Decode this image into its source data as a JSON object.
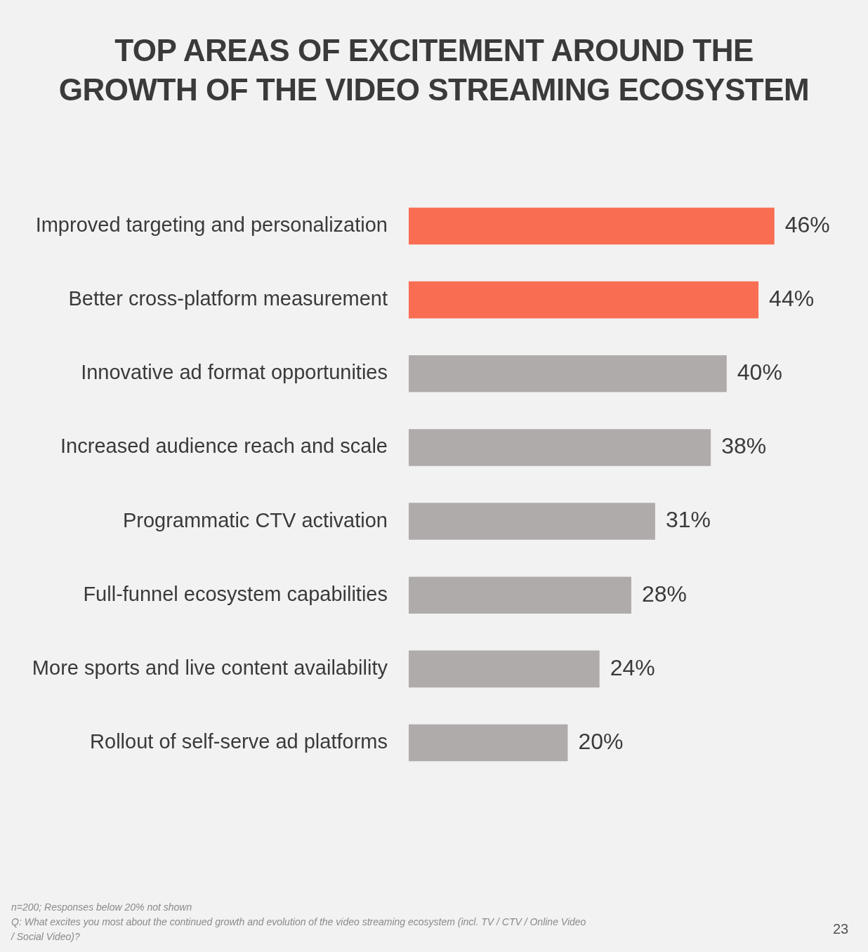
{
  "chart_data": {
    "type": "bar",
    "orientation": "horizontal",
    "title": "TOP AREAS OF EXCITEMENT AROUND THE GROWTH OF THE VIDEO STREAMING ECOSYSTEM",
    "categories": [
      "Improved targeting and personalization",
      "Better cross-platform measurement",
      "Innovative ad format opportunities",
      "Increased audience reach and scale",
      "Programmatic CTV activation",
      "Full-funnel ecosystem capabilities",
      "More sports and live content availability",
      "Rollout of self-serve ad platforms"
    ],
    "values": [
      46,
      44,
      40,
      38,
      31,
      28,
      24,
      20
    ],
    "colors": [
      "#f96e52",
      "#f96e52",
      "#afabaa",
      "#afabaa",
      "#afabaa",
      "#afabaa",
      "#afabaa",
      "#afabaa"
    ],
    "value_labels": [
      "46%",
      "44%",
      "40%",
      "38%",
      "31%",
      "28%",
      "24%",
      "20%"
    ],
    "tick_labels": "y",
    "grid": false,
    "legend": false,
    "annotations": [
      "n=200; Responses below 20% not shown",
      "Q: What excites you most about the continued growth and evolution of the video streaming ecosystem (incl. TV / CTV / Online Video / Social Video)?",
      "23"
    ]
  }
}
